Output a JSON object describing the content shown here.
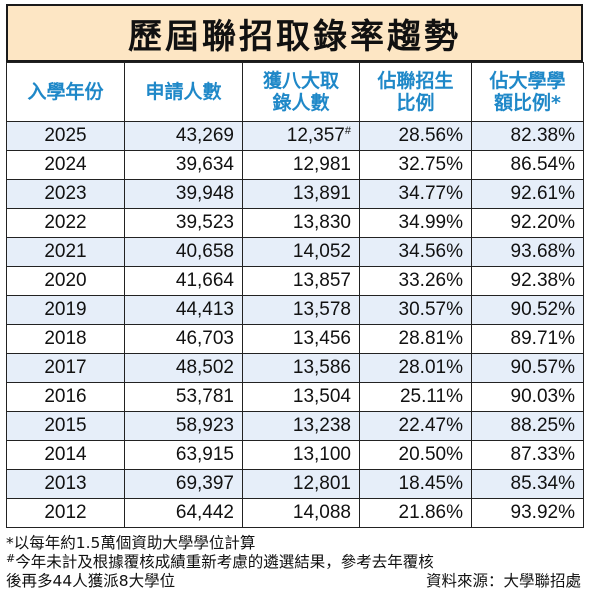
{
  "title": "歷屆聯招取錄率趨勢",
  "headers": [
    "入學年份",
    "申請人數",
    "獲八大取錄人數",
    "佔聯招生比例",
    "佔大學學額比例*"
  ],
  "headers_lines": [
    [
      "入學年份"
    ],
    [
      "申請人數"
    ],
    [
      "獲八大取",
      "錄人數"
    ],
    [
      "佔聯招生",
      "比例"
    ],
    [
      "佔大學學",
      "額比例*"
    ]
  ],
  "rows": [
    {
      "year": "2025",
      "applicants": "43,269",
      "admitted": "12,357",
      "admitted_mark": "#",
      "ratio_jupas": "28.56%",
      "ratio_places": "82.38%"
    },
    {
      "year": "2024",
      "applicants": "39,634",
      "admitted": "12,981",
      "admitted_mark": "",
      "ratio_jupas": "32.75%",
      "ratio_places": "86.54%"
    },
    {
      "year": "2023",
      "applicants": "39,948",
      "admitted": "13,891",
      "admitted_mark": "",
      "ratio_jupas": "34.77%",
      "ratio_places": "92.61%"
    },
    {
      "year": "2022",
      "applicants": "39,523",
      "admitted": "13,830",
      "admitted_mark": "",
      "ratio_jupas": "34.99%",
      "ratio_places": "92.20%"
    },
    {
      "year": "2021",
      "applicants": "40,658",
      "admitted": "14,052",
      "admitted_mark": "",
      "ratio_jupas": "34.56%",
      "ratio_places": "93.68%"
    },
    {
      "year": "2020",
      "applicants": "41,664",
      "admitted": "13,857",
      "admitted_mark": "",
      "ratio_jupas": "33.26%",
      "ratio_places": "92.38%"
    },
    {
      "year": "2019",
      "applicants": "44,413",
      "admitted": "13,578",
      "admitted_mark": "",
      "ratio_jupas": "30.57%",
      "ratio_places": "90.52%"
    },
    {
      "year": "2018",
      "applicants": "46,703",
      "admitted": "13,456",
      "admitted_mark": "",
      "ratio_jupas": "28.81%",
      "ratio_places": "89.71%"
    },
    {
      "year": "2017",
      "applicants": "48,502",
      "admitted": "13,586",
      "admitted_mark": "",
      "ratio_jupas": "28.01%",
      "ratio_places": "90.57%"
    },
    {
      "year": "2016",
      "applicants": "53,781",
      "admitted": "13,504",
      "admitted_mark": "",
      "ratio_jupas": "25.11%",
      "ratio_places": "90.03%"
    },
    {
      "year": "2015",
      "applicants": "58,923",
      "admitted": "13,238",
      "admitted_mark": "",
      "ratio_jupas": "22.47%",
      "ratio_places": "88.25%"
    },
    {
      "year": "2014",
      "applicants": "63,915",
      "admitted": "13,100",
      "admitted_mark": "",
      "ratio_jupas": "20.50%",
      "ratio_places": "87.33%"
    },
    {
      "year": "2013",
      "applicants": "69,397",
      "admitted": "12,801",
      "admitted_mark": "",
      "ratio_jupas": "18.45%",
      "ratio_places": "85.34%"
    },
    {
      "year": "2012",
      "applicants": "64,442",
      "admitted": "14,088",
      "admitted_mark": "",
      "ratio_jupas": "21.86%",
      "ratio_places": "93.92%"
    }
  ],
  "notes": {
    "asterisk_note": "*以每年約1.5萬個資助大學學位計算",
    "hash_note_mark": "#",
    "hash_note_line1": "今年未計及根據覆核成績重新考慮的遴選結果，參考去年覆核",
    "hash_note_line2": "後再多44人獲派8大學位",
    "source": "資料來源：大學聯招處"
  },
  "colors": {
    "title_bg": "#fde6c4",
    "header_text": "#1f88c8",
    "row_alt_bg": "#e6eef9",
    "border": "#222222"
  }
}
